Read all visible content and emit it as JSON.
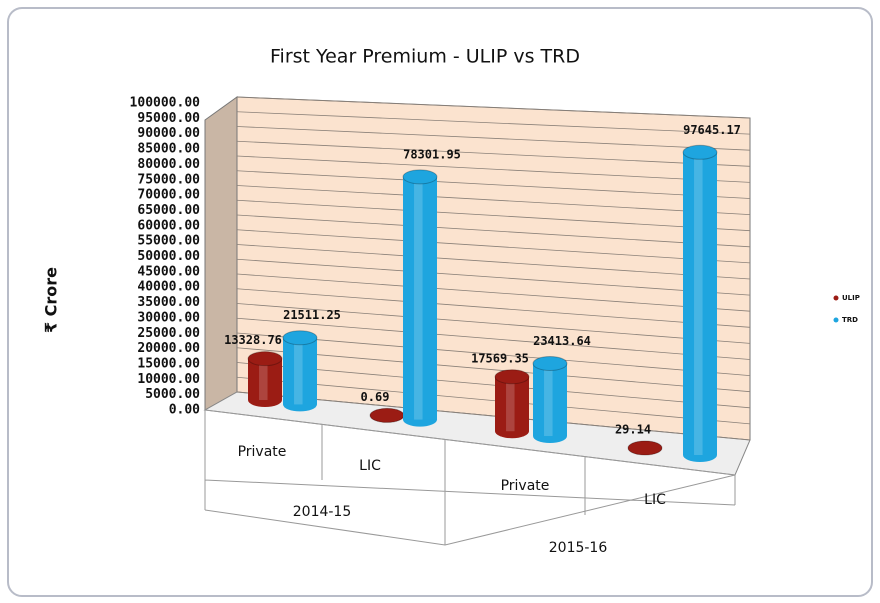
{
  "chart_data": {
    "type": "bar3d",
    "title": "First Year Premium - ULIP vs TRD",
    "ylabel": "₹ Crore",
    "categories": [
      "Private",
      "LIC",
      "Private",
      "LIC"
    ],
    "groups": [
      {
        "name": "2014-15",
        "span": 2
      },
      {
        "name": "2015-16",
        "span": 2
      }
    ],
    "series": [
      {
        "name": "ULIP",
        "color": "#9b1c14",
        "values": [
          13328.76,
          0.69,
          17569.35,
          29.14
        ]
      },
      {
        "name": "TRD",
        "color": "#1ea5df",
        "values": [
          21511.25,
          78301.95,
          23413.64,
          97645.17
        ]
      }
    ],
    "ylim": [
      0,
      100000
    ],
    "yticks": [
      {
        "value": 0,
        "label": "0.00"
      },
      {
        "value": 5000,
        "label": "5000.00"
      },
      {
        "value": 10000,
        "label": "10000.00"
      },
      {
        "value": 15000,
        "label": "15000.00"
      },
      {
        "value": 20000,
        "label": "20000.00"
      },
      {
        "value": 25000,
        "label": "25000.00"
      },
      {
        "value": 30000,
        "label": "30000.00"
      },
      {
        "value": 35000,
        "label": "35000.00"
      },
      {
        "value": 40000,
        "label": "40000.00"
      },
      {
        "value": 45000,
        "label": "45000.00"
      },
      {
        "value": 50000,
        "label": "50000.00"
      },
      {
        "value": 55000,
        "label": "55000.00"
      },
      {
        "value": 60000,
        "label": "60000.00"
      },
      {
        "value": 65000,
        "label": "65000.00"
      },
      {
        "value": 70000,
        "label": "70000.00"
      },
      {
        "value": 75000,
        "label": "75000.00"
      },
      {
        "value": 80000,
        "label": "80000.00"
      },
      {
        "value": 85000,
        "label": "85000.00"
      },
      {
        "value": 90000,
        "label": "90000.00"
      },
      {
        "value": 95000,
        "label": "95000.00"
      },
      {
        "value": 100000,
        "label": "100000.00"
      }
    ],
    "grid": true,
    "legend": "right"
  }
}
